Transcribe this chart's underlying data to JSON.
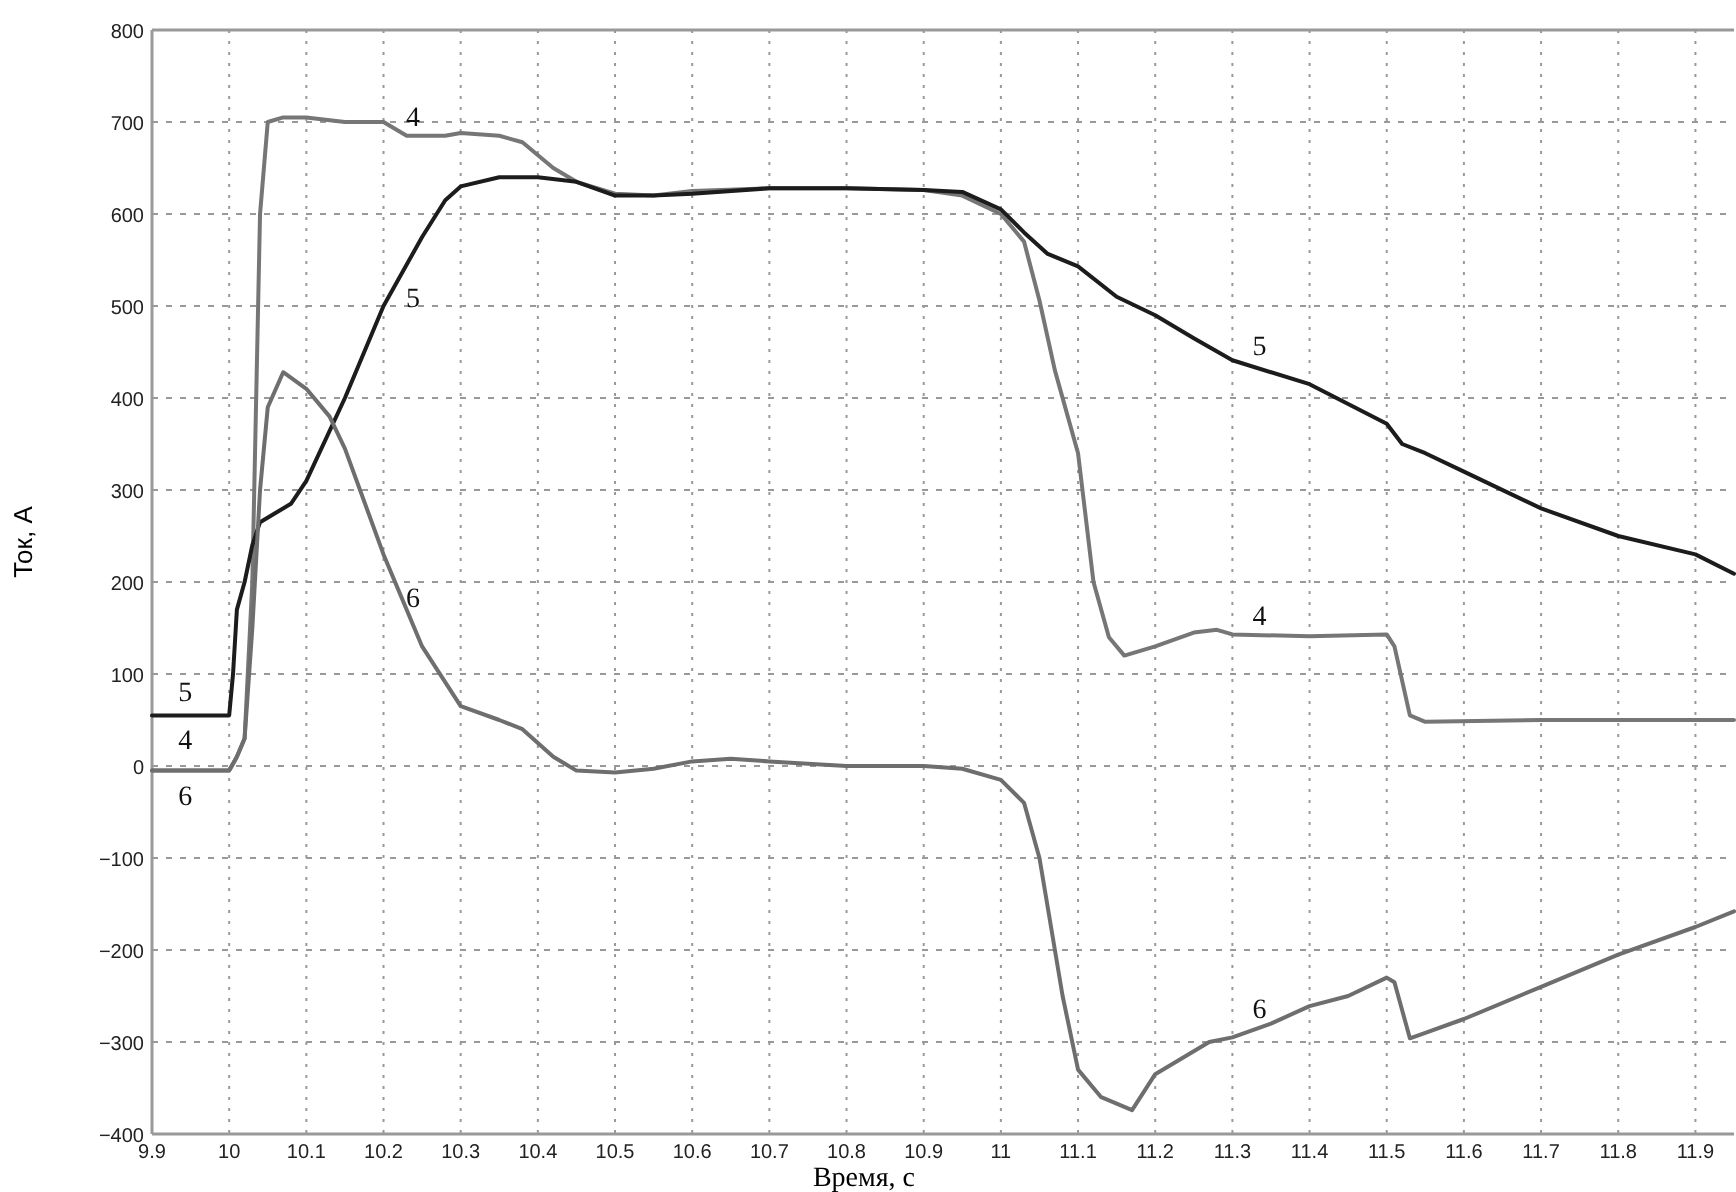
{
  "chart_data": {
    "type": "line",
    "xlabel": "Время, с",
    "ylabel": "Ток, А",
    "xlim": [
      9.9,
      11.95
    ],
    "xticks": [
      9.9,
      10,
      10.1,
      10.2,
      10.3,
      10.4,
      10.5,
      10.6,
      10.7,
      10.8,
      10.9,
      11,
      11.1,
      11.2,
      11.3,
      11.4,
      11.5,
      11.6,
      11.7,
      11.8,
      11.9
    ],
    "ylim": [
      -400,
      800
    ],
    "yticks": [
      {
        "value": -400,
        "label": "−400"
      },
      {
        "value": -300,
        "label": "−300"
      },
      {
        "value": -200,
        "label": "−200"
      },
      {
        "value": -100,
        "label": "−100"
      },
      0,
      100,
      200,
      300,
      400,
      500,
      600,
      700,
      800
    ],
    "grid": true,
    "marker": "none",
    "line_style": "solid",
    "series": [
      {
        "name": "4",
        "color": "#767676",
        "x": [
          9.9,
          10.0,
          10.01,
          10.02,
          10.03,
          10.04,
          10.05,
          10.07,
          10.1,
          10.15,
          10.2,
          10.23,
          10.28,
          10.3,
          10.35,
          10.38,
          10.42,
          10.45,
          10.5,
          10.55,
          10.6,
          10.7,
          10.8,
          10.9,
          10.95,
          11.0,
          11.03,
          11.05,
          11.07,
          11.1,
          11.12,
          11.14,
          11.16,
          11.2,
          11.25,
          11.28,
          11.3,
          11.4,
          11.5,
          11.51,
          11.53,
          11.55,
          11.7,
          11.95
        ],
        "values": [
          -5,
          -5,
          10,
          30,
          200,
          600,
          700,
          705,
          705,
          700,
          700,
          685,
          685,
          688,
          685,
          678,
          650,
          635,
          622,
          620,
          625,
          628,
          628,
          626,
          620,
          600,
          570,
          506,
          430,
          340,
          200,
          140,
          120,
          130,
          145,
          148,
          143,
          141,
          143,
          130,
          55,
          48,
          50,
          50
        ]
      },
      {
        "name": "5",
        "color": "#1c1c1c",
        "x": [
          9.9,
          10.0,
          10.005,
          10.01,
          10.02,
          10.03,
          10.04,
          10.06,
          10.08,
          10.1,
          10.15,
          10.2,
          10.25,
          10.28,
          10.3,
          10.35,
          10.4,
          10.45,
          10.5,
          10.55,
          10.6,
          10.7,
          10.8,
          10.9,
          10.95,
          11.0,
          11.03,
          11.06,
          11.1,
          11.15,
          11.2,
          11.25,
          11.3,
          11.4,
          11.5,
          11.52,
          11.55,
          11.6,
          11.7,
          11.8,
          11.9,
          11.95
        ],
        "values": [
          55,
          55,
          100,
          170,
          200,
          240,
          265,
          275,
          285,
          310,
          400,
          500,
          575,
          615,
          630,
          640,
          640,
          635,
          620,
          620,
          622,
          628,
          628,
          626,
          624,
          605,
          580,
          557,
          543,
          510,
          490,
          465,
          441,
          415,
          372,
          350,
          340,
          320,
          280,
          250,
          230,
          209
        ]
      },
      {
        "name": "6",
        "color": "#6e6e6e",
        "x": [
          9.9,
          10.0,
          10.01,
          10.02,
          10.03,
          10.04,
          10.05,
          10.07,
          10.1,
          10.13,
          10.15,
          10.2,
          10.25,
          10.3,
          10.35,
          10.38,
          10.42,
          10.45,
          10.5,
          10.55,
          10.6,
          10.65,
          10.7,
          10.8,
          10.9,
          10.95,
          11.0,
          11.03,
          11.05,
          11.08,
          11.1,
          11.13,
          11.17,
          11.2,
          11.27,
          11.3,
          11.35,
          11.4,
          11.45,
          11.5,
          11.51,
          11.53,
          11.55,
          11.6,
          11.7,
          11.8,
          11.9,
          11.95
        ],
        "values": [
          -5,
          -5,
          10,
          30,
          150,
          300,
          390,
          428,
          410,
          380,
          345,
          230,
          130,
          65,
          50,
          40,
          10,
          -5,
          -7,
          -3,
          5,
          8,
          5,
          0,
          0,
          -3,
          -15,
          -40,
          -100,
          -250,
          -330,
          -360,
          -374,
          -335,
          -300,
          -295,
          -280,
          -261,
          -250,
          -230,
          -235,
          -296,
          -290,
          -275,
          -240,
          -205,
          -175,
          -158
        ]
      }
    ]
  }
}
